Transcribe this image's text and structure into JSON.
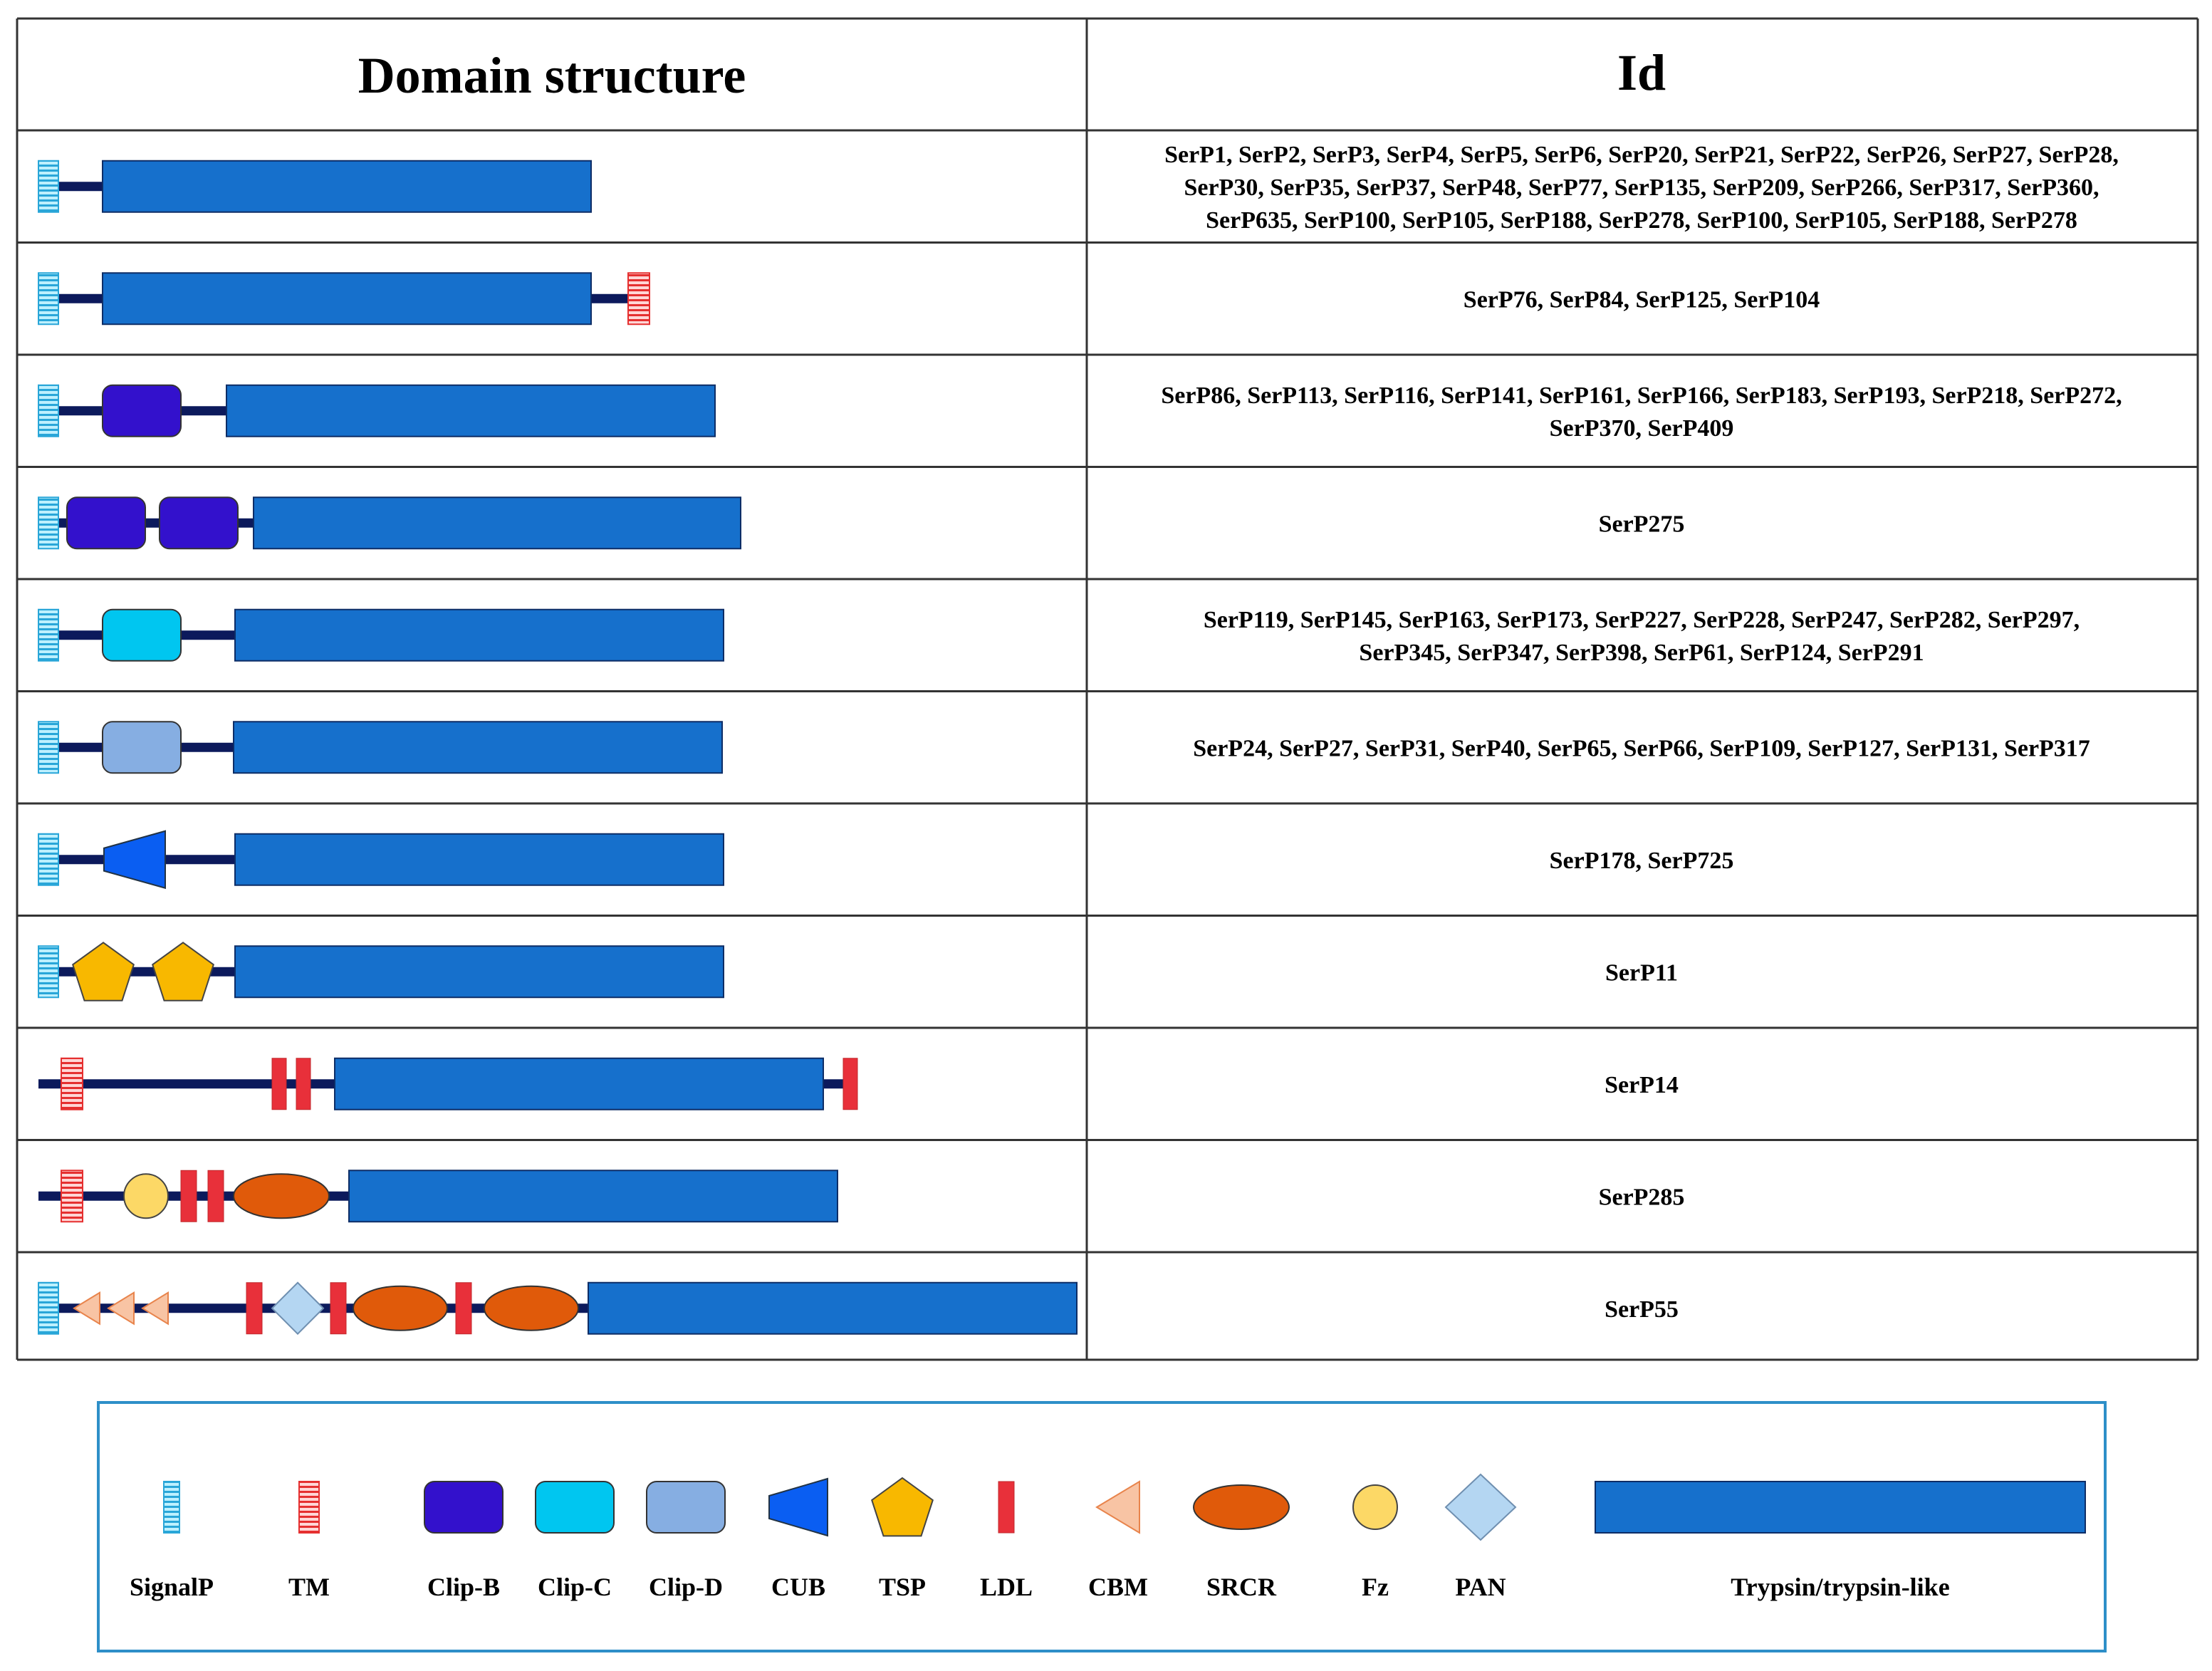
{
  "table": {
    "headers": {
      "domain": "Domain structure",
      "id": "Id"
    },
    "rows": [
      {
        "ids": [
          "SerP1, SerP2, SerP3, SerP4, SerP5, SerP6, SerP20, SerP21, SerP22, SerP26, SerP27, SerP28,",
          "SerP30,  SerP35,  SerP37,  SerP48,  SerP77,  SerP135,  SerP209,  SerP266,  SerP317,  SerP360,",
          "SerP635, SerP100, SerP105, SerP188, SerP278, SerP100, SerP105, SerP188, SerP278"
        ],
        "domains": [
          "SignalP",
          "Trypsin/trypsin-like"
        ]
      },
      {
        "ids": [
          "SerP76, SerP84, SerP125, SerP104"
        ],
        "domains": [
          "SignalP",
          "Trypsin/trypsin-like",
          "TM"
        ]
      },
      {
        "ids": [
          "SerP86, SerP113, SerP116, SerP141, SerP161, SerP166, SerP183, SerP193, SerP218, SerP272,",
          "SerP370, SerP409"
        ],
        "domains": [
          "SignalP",
          "Clip-B",
          "Trypsin/trypsin-like"
        ]
      },
      {
        "ids": [
          "SerP275"
        ],
        "domains": [
          "SignalP",
          "Clip-B",
          "Clip-B",
          "Trypsin/trypsin-like"
        ]
      },
      {
        "ids": [
          "SerP119, SerP145, SerP163, SerP173, SerP227, SerP228, SerP247, SerP282, SerP297,",
          "SerP345, SerP347, SerP398, SerP61, SerP124, SerP291"
        ],
        "domains": [
          "SignalP",
          "Clip-C",
          "Trypsin/trypsin-like"
        ]
      },
      {
        "ids": [
          "SerP24, SerP27, SerP31, SerP40, SerP65, SerP66, SerP109, SerP127, SerP131, SerP317"
        ],
        "domains": [
          "SignalP",
          "Clip-D",
          "Trypsin/trypsin-like"
        ]
      },
      {
        "ids": [
          "SerP178, SerP725"
        ],
        "domains": [
          "SignalP",
          "CUB",
          "Trypsin/trypsin-like"
        ]
      },
      {
        "ids": [
          "SerP11"
        ],
        "domains": [
          "SignalP",
          "TSP",
          "TSP",
          "Trypsin/trypsin-like"
        ]
      },
      {
        "ids": [
          "SerP14"
        ],
        "domains": [
          "TM",
          "LDL",
          "LDL",
          "Trypsin/trypsin-like",
          "LDL"
        ]
      },
      {
        "ids": [
          "SerP285"
        ],
        "domains": [
          "TM",
          "Fz",
          "LDL",
          "LDL",
          "SRCR",
          "Trypsin/trypsin-like"
        ]
      },
      {
        "ids": [
          "SerP55"
        ],
        "domains": [
          "SignalP",
          "CBM",
          "CBM",
          "CBM",
          "LDL",
          "PAN",
          "LDL",
          "SRCR",
          "LDL",
          "SRCR",
          "Trypsin/trypsin-like"
        ]
      }
    ]
  },
  "legend": [
    {
      "key": "signalp",
      "label": "SignalP",
      "icon": "signalp-icon"
    },
    {
      "key": "tm",
      "label": "TM",
      "icon": "tm-icon"
    },
    {
      "key": "clipb",
      "label": "Clip-B",
      "icon": "clip-b-icon"
    },
    {
      "key": "clipc",
      "label": "Clip-C",
      "icon": "clip-c-icon"
    },
    {
      "key": "clipd",
      "label": "Clip-D",
      "icon": "clip-d-icon"
    },
    {
      "key": "cub",
      "label": "CUB",
      "icon": "cub-icon"
    },
    {
      "key": "tsp",
      "label": "TSP",
      "icon": "tsp-icon"
    },
    {
      "key": "ldl",
      "label": "LDL",
      "icon": "ldl-icon"
    },
    {
      "key": "cbm",
      "label": "CBM",
      "icon": "cbm-icon"
    },
    {
      "key": "srcr",
      "label": "SRCR",
      "icon": "srcr-icon"
    },
    {
      "key": "fz",
      "label": "Fz",
      "icon": "fz-icon"
    },
    {
      "key": "pan",
      "label": "PAN",
      "icon": "pan-icon"
    },
    {
      "key": "trypsin",
      "label": "Trypsin/trypsin-like",
      "icon": "trypsin-icon"
    }
  ],
  "colors": {
    "signalp": "#29a6d8",
    "tm": "#e53030",
    "clipb": "#3311cc",
    "clipc": "#00c6f0",
    "clipd": "#86aee2",
    "cub": "#0a5ef2",
    "tsp": "#f8b800",
    "ldl": "#e8303a",
    "cbm": "#f8c4a4",
    "srcr": "#e05a0a",
    "fz": "#fcd866",
    "pan": "#b4d6f2",
    "trypsin": "#1670cc",
    "backbone": "#0c1a5c",
    "legend_border": "#2e8fc8"
  }
}
